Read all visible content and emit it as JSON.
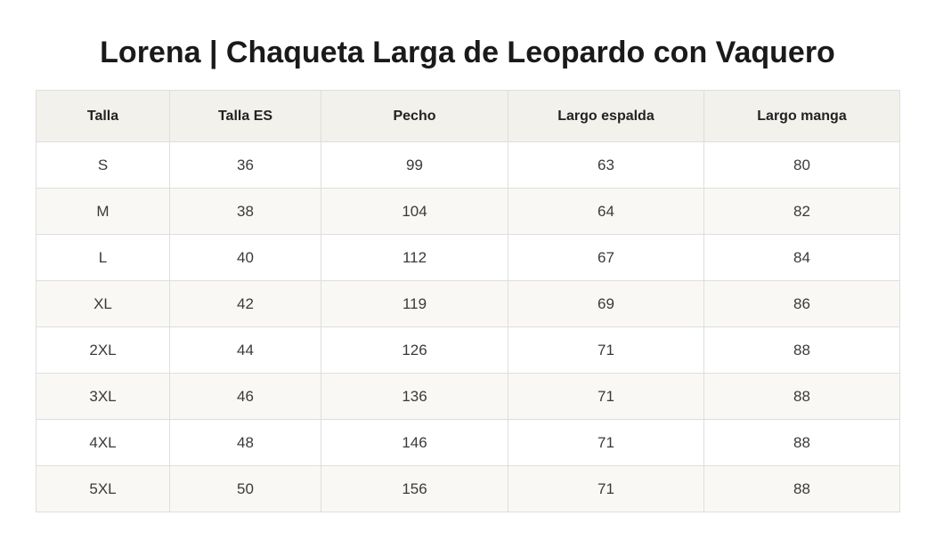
{
  "title": "Lorena | Chaqueta Larga de Leopardo con Vaquero",
  "table": {
    "headers": [
      "Talla",
      "Talla ES",
      "Pecho",
      "Largo espalda",
      "Largo manga"
    ],
    "rows": [
      [
        "S",
        "36",
        "99",
        "63",
        "80"
      ],
      [
        "M",
        "38",
        "104",
        "64",
        "82"
      ],
      [
        "L",
        "40",
        "112",
        "67",
        "84"
      ],
      [
        "XL",
        "42",
        "119",
        "69",
        "86"
      ],
      [
        "2XL",
        "44",
        "126",
        "71",
        "88"
      ],
      [
        "3XL",
        "46",
        "136",
        "71",
        "88"
      ],
      [
        "4XL",
        "48",
        "146",
        "71",
        "88"
      ],
      [
        "5XL",
        "50",
        "156",
        "71",
        "88"
      ]
    ]
  },
  "colors": {
    "header_background": "#f2f1ec",
    "striped_row_background": "#f9f8f4",
    "border": "#dedede"
  }
}
